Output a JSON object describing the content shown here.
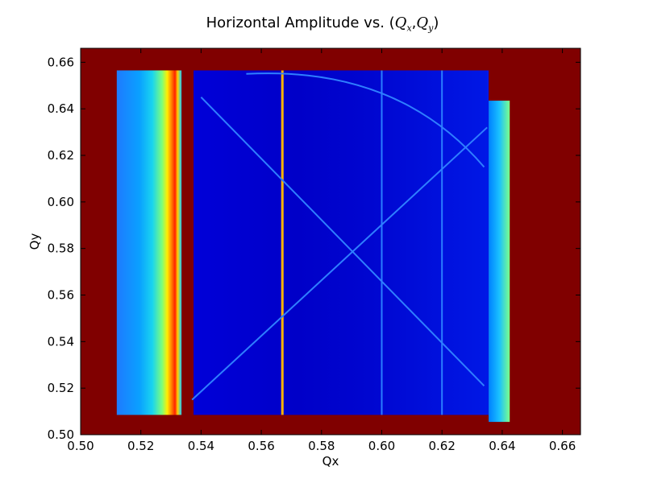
{
  "chart_data": {
    "type": "heatmap",
    "title_prefix": "Horizontal Amplitude vs. (",
    "title_math": "Q",
    "title_sub_x": "x",
    "title_sep": ",",
    "title_sub_y": "y",
    "title_suffix": ")",
    "xlabel": "Qx",
    "ylabel": "Qy",
    "xlim": [
      0.5,
      0.666
    ],
    "ylim": [
      0.5,
      0.666
    ],
    "xticks": [
      "0.50",
      "0.52",
      "0.54",
      "0.56",
      "0.58",
      "0.60",
      "0.62",
      "0.64",
      "0.66"
    ],
    "yticks": [
      "0.50",
      "0.52",
      "0.54",
      "0.56",
      "0.58",
      "0.60",
      "0.62",
      "0.64",
      "0.66"
    ],
    "colormap": "jet",
    "background_color": "#800000",
    "regions": [
      {
        "name": "left-band",
        "x": [
          0.512,
          0.5335
        ],
        "y": [
          0.5085,
          0.6565
        ]
      },
      {
        "name": "main-region",
        "x": [
          0.5375,
          0.6355
        ],
        "y": [
          0.5085,
          0.6565
        ]
      },
      {
        "name": "right-strip",
        "x": [
          0.6355,
          0.6425
        ],
        "y": [
          0.5055,
          0.6435
        ]
      }
    ],
    "resonance_lines": [
      {
        "name": "vertical-line-0.567",
        "x": 0.567
      },
      {
        "name": "vertical-line-0.600",
        "x": 0.6
      },
      {
        "name": "vertical-line-0.620",
        "x": 0.62
      },
      {
        "name": "diagonal-rising",
        "from": [
          0.537,
          0.515
        ],
        "to": [
          0.635,
          0.632
        ]
      },
      {
        "name": "diagonal-falling",
        "from": [
          0.54,
          0.645
        ],
        "to": [
          0.634,
          0.521
        ]
      },
      {
        "name": "arc-upper",
        "from": [
          0.555,
          0.655
        ],
        "to": [
          0.634,
          0.615
        ]
      }
    ]
  }
}
